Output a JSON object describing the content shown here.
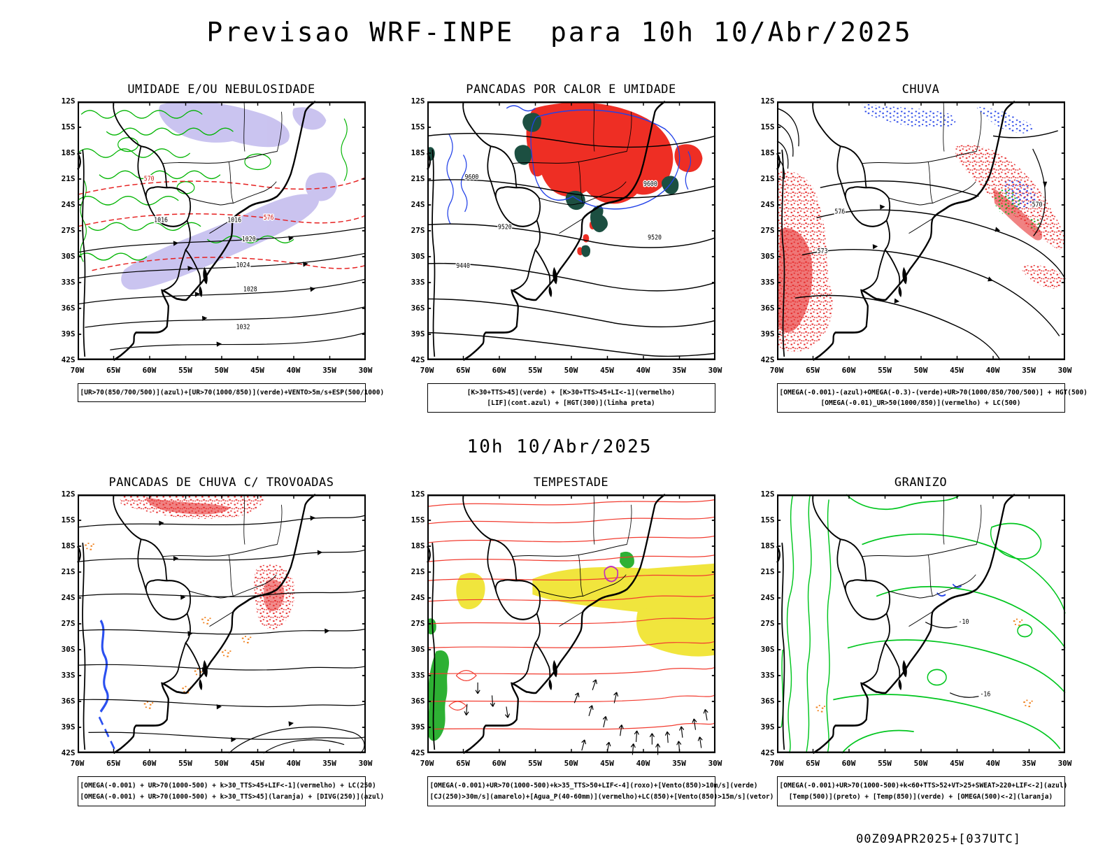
{
  "page": {
    "title": "Previsao WRF-INPE  para 10h 10/Abr/2025",
    "mid_label": "10h 10/Abr/2025",
    "footer": "00Z09APR2025+[037UTC]"
  },
  "axes": {
    "lat": [
      "12S",
      "15S",
      "18S",
      "21S",
      "24S",
      "27S",
      "30S",
      "33S",
      "36S",
      "39S",
      "42S"
    ],
    "lon": [
      "70W",
      "65W",
      "60W",
      "55W",
      "50W",
      "45W",
      "40W",
      "35W",
      "30W"
    ]
  },
  "colors": {
    "green_contour": "#00b400",
    "red": "#e62020",
    "blue": "#2342e8",
    "lavender_shade": "#bdb5ec",
    "dark_green_fill": "#1c4f41",
    "yellow_fill": "#f0e433",
    "orange": "#f0821e",
    "purple": "#c02ec0",
    "black": "#000000"
  },
  "panels": [
    {
      "title": "UMIDADE E/OU NEBULOSIDADE",
      "caption1": "[UR>70(850/700/500)](azul)+[UR>70(1000/850)](verde)+VENTO>5m/s+ESP(500/1000)",
      "contour_labels": [
        "570",
        "576",
        "1016",
        "1016",
        "1020",
        "1024",
        "1028",
        "1032"
      ]
    },
    {
      "title": "PANCADAS POR CALOR E UMIDADE",
      "caption1": "[K>30+TTS>45](verde) + [K>30+TTS>45+LI<-1](vermelho)",
      "caption2": "[LIF](cont.azul) + [HGT(300)](linha preta)",
      "contour_labels": [
        "9600",
        "9600",
        "9520",
        "9520",
        "9440"
      ]
    },
    {
      "title": "CHUVA",
      "caption1": "[OMEGA(-0.001)-(azul)+OMEGA(-0.3)-(verde)+UR>70(1000/850/700/500)] + HGT(500)",
      "caption2": "[OMEGA(-0.01)_UR>50(1000/850)](vermelho) + LC(500)",
      "contour_labels": [
        "570",
        "576",
        "573"
      ]
    },
    {
      "title": "PANCADAS DE CHUVA C/ TROVOADAS",
      "caption1": "[OMEGA(-0.001) + UR>70(1000-500) + k>30_TTS>45+LIF<-1](vermelho) + LC(250)",
      "caption2": "[OMEGA(-0.001) + UR>70(1000-500) + k>30_TTS>45](laranja) + [DIVG(250)](azul)",
      "contour_labels": []
    },
    {
      "title": "TEMPESTADE",
      "caption1": "[OMEGA(-0.001)+UR>70(1000-500)+k>35_TTS>50+LIF<-4](roxo)+[Vento(850)>10m/s](verde)",
      "caption2": "[CJ(250)>30m/s](amarelo)+[Agua_P(40-60mm)](vermelho)+LC(850)+[Vento(850)>15m/s](vetor)",
      "contour_labels": []
    },
    {
      "title": "GRANIZO",
      "caption1": "[OMEGA(-0.001)+UR>70(1000-500)+k<60+TTS>52+VT>25+SWEAT>220+LIF<-2](azul)",
      "caption2": "[Temp(500)](preto) + [Temp(850)](verde) + [OMEGA(500)<-2](laranja)",
      "contour_labels": [
        "-10",
        "-16"
      ]
    }
  ]
}
